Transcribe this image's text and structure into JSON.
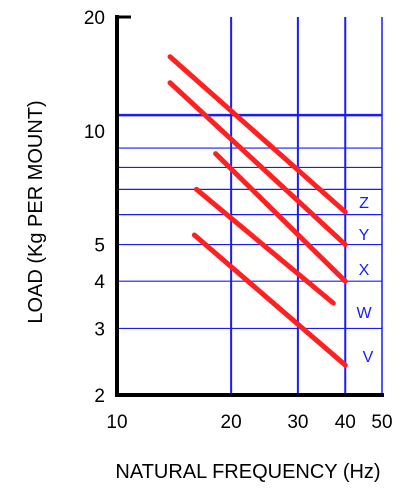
{
  "chart_data": {
    "type": "line",
    "xlabel": "NATURAL FREQUENCY (Hz)",
    "ylabel": "LOAD (Kg PER MOUNT)",
    "x_scale": "log",
    "y_scale": "log",
    "xlim": [
      10,
      50
    ],
    "ylim": [
      2,
      20
    ],
    "x_ticks": [
      10,
      20,
      30,
      40,
      50
    ],
    "y_ticks": [
      2,
      3,
      4,
      5,
      10,
      20
    ],
    "x_gridlines": [
      20,
      30,
      40
    ],
    "y_gridlines": [
      3,
      4,
      5,
      6,
      7,
      8,
      9,
      11
    ],
    "grid": true,
    "series": [
      {
        "name": "Z",
        "x": [
          13.8,
          40.0
        ],
        "y": [
          15.7,
          6.1
        ]
      },
      {
        "name": "Y",
        "x": [
          13.8,
          40.0
        ],
        "y": [
          13.4,
          5.0
        ]
      },
      {
        "name": "X",
        "x": [
          18.2,
          40.0
        ],
        "y": [
          8.7,
          4.0
        ]
      },
      {
        "name": "W",
        "x": [
          16.2,
          37.2
        ],
        "y": [
          7.0,
          3.5
        ]
      },
      {
        "name": "V",
        "x": [
          16.0,
          40.0
        ],
        "y": [
          5.3,
          2.4
        ]
      }
    ],
    "colors": {
      "lines": "#ff2020",
      "grid": "#1a1aff",
      "axes": "#000000",
      "labels": "#1a1aff"
    }
  }
}
